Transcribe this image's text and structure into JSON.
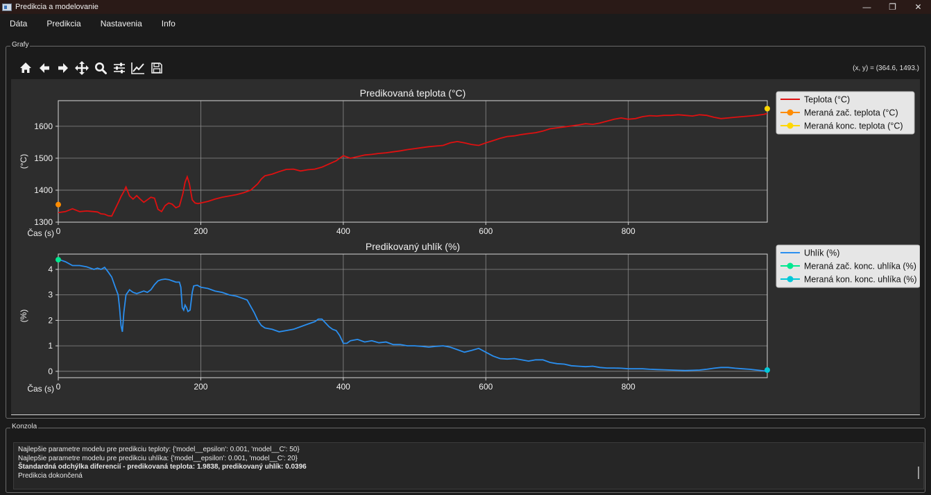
{
  "window": {
    "title": "Predikcia a modelovanie",
    "controls": {
      "minimize": "—",
      "maximize": "❐",
      "close": "✕"
    }
  },
  "menu": {
    "items": [
      "Dáta",
      "Predikcia",
      "Nastavenia",
      "Info"
    ]
  },
  "charts_group": {
    "title": "Grafy",
    "toolbar": [
      "home-icon",
      "back-icon",
      "forward-icon",
      "pan-icon",
      "zoom-icon",
      "configure-subplots-icon",
      "edit-axis-icon",
      "save-icon"
    ],
    "coords": "(x, y) = (364.6, 1493.)"
  },
  "chart_data": [
    {
      "type": "line",
      "title": "Predikovaná teplota (°C)",
      "xlabel": "Čas (s)",
      "ylabel": "(°C)",
      "xlim": [
        0,
        995
      ],
      "ylim": [
        1300,
        1680
      ],
      "xticks": [
        0,
        200,
        400,
        600,
        800
      ],
      "yticks": [
        1300,
        1400,
        1500,
        1600
      ],
      "grid": true,
      "legend_position": "outside-right",
      "series": [
        {
          "name": "Teplota (°C)",
          "color": "#e01010",
          "x": [
            0,
            10,
            20,
            30,
            40,
            50,
            55,
            60,
            65,
            70,
            75,
            80,
            85,
            88,
            92,
            95,
            100,
            105,
            110,
            115,
            120,
            125,
            130,
            135,
            140,
            145,
            150,
            155,
            160,
            165,
            170,
            175,
            178,
            181,
            184,
            188,
            192,
            196,
            200,
            210,
            220,
            230,
            240,
            250,
            260,
            270,
            275,
            280,
            285,
            290,
            300,
            310,
            320,
            330,
            340,
            350,
            360,
            370,
            380,
            390,
            395,
            400,
            405,
            410,
            420,
            430,
            440,
            450,
            460,
            470,
            480,
            490,
            500,
            510,
            520,
            530,
            540,
            550,
            560,
            570,
            580,
            590,
            600,
            610,
            620,
            630,
            640,
            650,
            660,
            670,
            680,
            690,
            700,
            710,
            720,
            730,
            740,
            750,
            760,
            770,
            780,
            790,
            800,
            810,
            820,
            830,
            840,
            850,
            860,
            870,
            880,
            890,
            900,
            910,
            920,
            930,
            940,
            950,
            960,
            970,
            980,
            990,
            995
          ],
          "y": [
            1330,
            1333,
            1342,
            1333,
            1335,
            1333,
            1332,
            1326,
            1325,
            1320,
            1319,
            1342,
            1365,
            1380,
            1396,
            1410,
            1382,
            1372,
            1383,
            1372,
            1362,
            1370,
            1378,
            1375,
            1340,
            1333,
            1352,
            1360,
            1356,
            1345,
            1350,
            1390,
            1425,
            1442,
            1420,
            1370,
            1360,
            1358,
            1360,
            1365,
            1372,
            1378,
            1382,
            1386,
            1392,
            1400,
            1410,
            1420,
            1435,
            1445,
            1450,
            1458,
            1465,
            1466,
            1460,
            1464,
            1466,
            1472,
            1482,
            1492,
            1500,
            1508,
            1504,
            1500,
            1505,
            1510,
            1512,
            1515,
            1517,
            1520,
            1523,
            1527,
            1530,
            1533,
            1536,
            1538,
            1540,
            1548,
            1552,
            1548,
            1543,
            1540,
            1548,
            1555,
            1562,
            1568,
            1570,
            1574,
            1577,
            1580,
            1585,
            1592,
            1595,
            1598,
            1601,
            1604,
            1608,
            1606,
            1610,
            1616,
            1622,
            1626,
            1622,
            1624,
            1630,
            1633,
            1632,
            1634,
            1634,
            1636,
            1634,
            1632,
            1636,
            1634,
            1628,
            1624,
            1626,
            1628,
            1630,
            1632,
            1634,
            1637,
            1640
          ]
        },
        {
          "name": "Meraná zač. teplota (°C)",
          "color": "#ff8c00",
          "x": [
            0
          ],
          "y": [
            1355
          ]
        },
        {
          "name": "Meraná konc. teplota (°C)",
          "color": "#ffd700",
          "x": [
            995
          ],
          "y": [
            1655
          ]
        }
      ]
    },
    {
      "type": "line",
      "title": "Predikovaný uhlík (%)",
      "xlabel": "Čas (s)",
      "ylabel": "(%)",
      "xlim": [
        0,
        995
      ],
      "ylim": [
        -0.25,
        4.6
      ],
      "xticks": [
        0,
        200,
        400,
        600,
        800
      ],
      "yticks": [
        0,
        1,
        2,
        3,
        4
      ],
      "grid": true,
      "legend_position": "outside-right",
      "series": [
        {
          "name": "Uhlík (%)",
          "color": "#2a8ff0",
          "x": [
            0,
            5,
            10,
            20,
            30,
            40,
            50,
            55,
            60,
            65,
            70,
            75,
            80,
            84,
            86,
            88,
            90,
            92,
            95,
            100,
            105,
            110,
            115,
            120,
            125,
            130,
            135,
            140,
            145,
            150,
            155,
            160,
            165,
            170,
            172,
            174,
            176,
            178,
            180,
            182,
            185,
            188,
            190,
            195,
            200,
            210,
            220,
            230,
            240,
            250,
            260,
            265,
            270,
            275,
            280,
            285,
            290,
            300,
            310,
            320,
            330,
            340,
            350,
            360,
            365,
            370,
            375,
            380,
            385,
            390,
            395,
            400,
            405,
            410,
            420,
            430,
            440,
            450,
            460,
            470,
            480,
            490,
            500,
            510,
            520,
            530,
            540,
            550,
            560,
            570,
            580,
            590,
            600,
            610,
            620,
            630,
            640,
            650,
            660,
            670,
            680,
            690,
            700,
            710,
            720,
            730,
            740,
            750,
            760,
            770,
            780,
            790,
            800,
            810,
            820,
            830,
            840,
            850,
            860,
            870,
            880,
            890,
            900,
            910,
            920,
            930,
            940,
            950,
            960,
            970,
            980,
            990,
            995
          ],
          "y": [
            4.4,
            4.35,
            4.3,
            4.15,
            4.15,
            4.1,
            4.0,
            4.05,
            4.0,
            4.08,
            3.9,
            3.7,
            3.3,
            3.0,
            2.5,
            1.8,
            1.55,
            2.3,
            3.0,
            3.2,
            3.1,
            3.05,
            3.1,
            3.15,
            3.1,
            3.2,
            3.4,
            3.55,
            3.6,
            3.62,
            3.6,
            3.55,
            3.5,
            3.5,
            3.3,
            2.5,
            2.4,
            2.6,
            2.5,
            2.35,
            2.4,
            3.1,
            3.35,
            3.38,
            3.3,
            3.25,
            3.15,
            3.1,
            3.0,
            2.95,
            2.85,
            2.8,
            2.55,
            2.3,
            2.0,
            1.8,
            1.7,
            1.65,
            1.55,
            1.6,
            1.65,
            1.75,
            1.85,
            1.95,
            2.05,
            2.05,
            1.9,
            1.75,
            1.65,
            1.6,
            1.4,
            1.1,
            1.1,
            1.2,
            1.25,
            1.15,
            1.2,
            1.12,
            1.15,
            1.05,
            1.05,
            1.0,
            1.0,
            0.98,
            0.95,
            0.98,
            1.0,
            0.95,
            0.85,
            0.75,
            0.82,
            0.9,
            0.75,
            0.6,
            0.5,
            0.48,
            0.5,
            0.45,
            0.4,
            0.45,
            0.45,
            0.35,
            0.3,
            0.28,
            0.22,
            0.2,
            0.18,
            0.2,
            0.15,
            0.13,
            0.13,
            0.12,
            0.1,
            0.1,
            0.1,
            0.08,
            0.07,
            0.06,
            0.05,
            0.04,
            0.03,
            0.04,
            0.05,
            0.08,
            0.12,
            0.15,
            0.15,
            0.12,
            0.1,
            0.08,
            0.05,
            0.02,
            0.0
          ]
        },
        {
          "name": "Meraná zač. konc. uhlíka (%)",
          "color": "#00e890",
          "x": [
            0
          ],
          "y": [
            4.38
          ]
        },
        {
          "name": "Meraná kon. konc. uhlíka (%)",
          "color": "#00c8d8",
          "x": [
            995
          ],
          "y": [
            0.05
          ]
        }
      ]
    }
  ],
  "console": {
    "title": "Konzola",
    "lines": [
      {
        "text": "Najlepšie parametre modelu pre predikciu teploty: {'model__epsilon': 0.001, 'model__C': 50}",
        "bold": false
      },
      {
        "text": "Najlepšie parametre modelu pre predikciu uhlíka: {'model__epsilon': 0.001, 'model__C': 20}",
        "bold": false
      },
      {
        "text": "Štandardná odchýlka diferencií - predikovaná teplota: 1.9838, predikovaný uhlík: 0.0396",
        "bold": true
      },
      {
        "text": "Predikcia dokončená",
        "bold": false
      }
    ]
  }
}
